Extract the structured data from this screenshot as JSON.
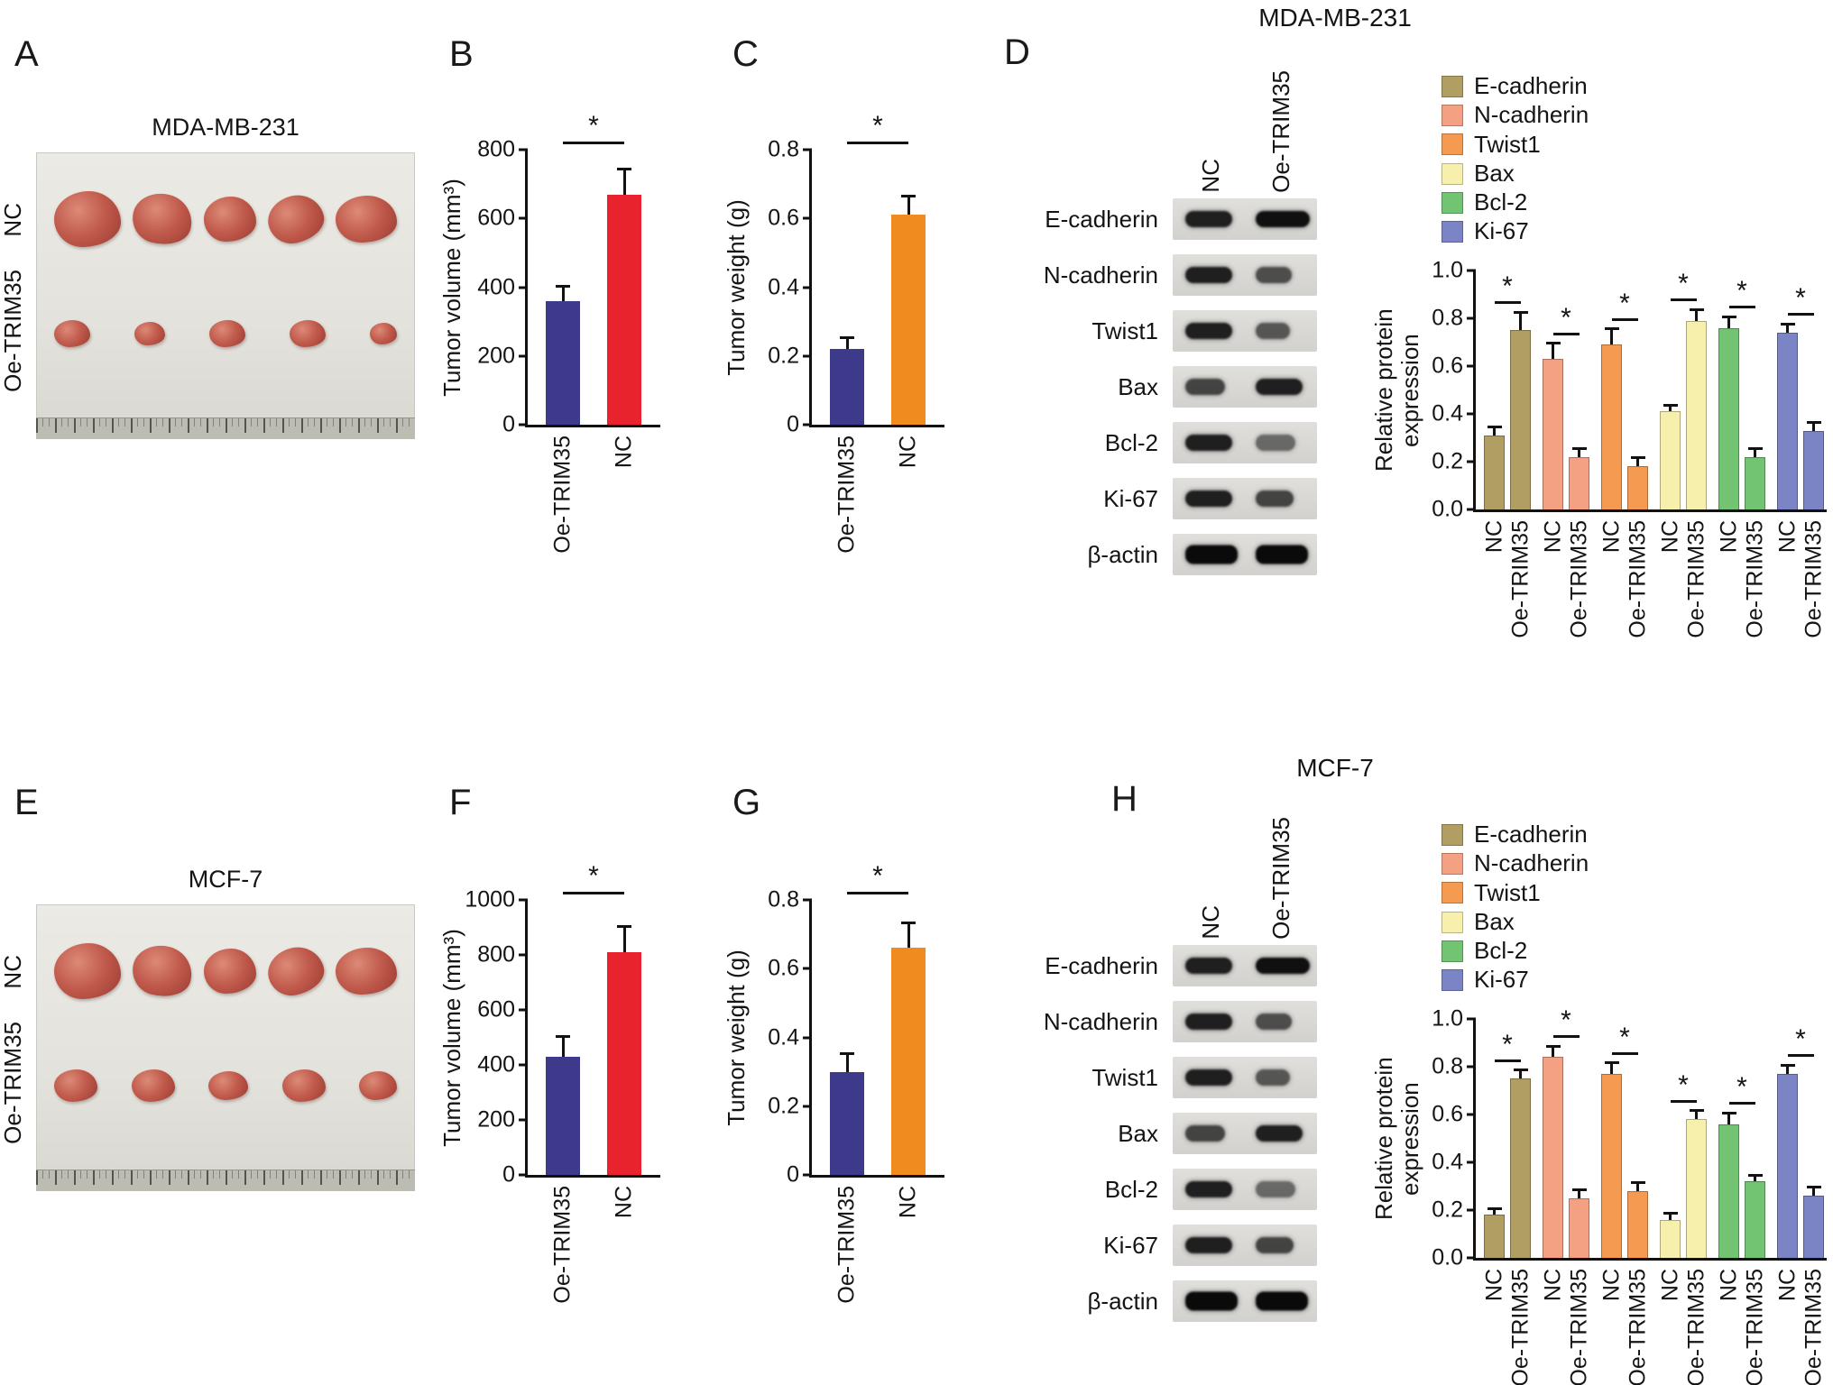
{
  "figure": {
    "panels": {
      "A": {
        "letter": "A",
        "photo_title": "MDA-MB-231",
        "row_labels": [
          "NC",
          "Oe-TRIM35"
        ]
      },
      "B": {
        "letter": "B"
      },
      "C": {
        "letter": "C"
      },
      "D": {
        "letter": "D",
        "title": "MDA-MB-231"
      },
      "E": {
        "letter": "E",
        "photo_title": "MCF-7",
        "row_labels": [
          "NC",
          "Oe-TRIM35"
        ]
      },
      "F": {
        "letter": "F"
      },
      "G": {
        "letter": "G"
      },
      "H": {
        "letter": "H",
        "title": "MCF-7"
      }
    },
    "western_blot": {
      "lanes": [
        "NC",
        "Oe-TRIM35"
      ],
      "rows": [
        "E-cadherin",
        "N-cadherin",
        "Twist1",
        "Bax",
        "Bcl-2",
        "Ki-67",
        "β-actin"
      ]
    },
    "legend": [
      {
        "label": "E-cadherin",
        "color": "#b19e63"
      },
      {
        "label": "N-cadherin",
        "color": "#f4a183"
      },
      {
        "label": "Twist1",
        "color": "#f59b51"
      },
      {
        "label": "Bax",
        "color": "#f7f0ad"
      },
      {
        "label": "Bcl-2",
        "color": "#72c472"
      },
      {
        "label": "Ki-67",
        "color": "#7b85c6"
      }
    ]
  },
  "chart_data": [
    {
      "panel": "B",
      "type": "bar",
      "cell_line": "MDA-MB-231",
      "categories": [
        "Oe-TRIM35",
        "NC"
      ],
      "values": [
        360,
        670
      ],
      "errors": [
        40,
        70
      ],
      "bar_colors": [
        "#3d3a8c",
        "#e8232d"
      ],
      "ylabel": "Tumor volume (mm³)",
      "ylim": [
        0,
        800
      ],
      "yticks": [
        0,
        200,
        400,
        600,
        800
      ],
      "ytick_labels": [
        "0",
        "200",
        "400",
        "600",
        "800"
      ],
      "significance": "*"
    },
    {
      "panel": "C",
      "type": "bar",
      "cell_line": "MDA-MB-231",
      "categories": [
        "Oe-TRIM35",
        "NC"
      ],
      "values": [
        0.22,
        0.61
      ],
      "errors": [
        0.03,
        0.05
      ],
      "bar_colors": [
        "#3d3a8c",
        "#f08b1f"
      ],
      "ylabel": "Tumor weight (g)",
      "ylim": [
        0,
        0.8
      ],
      "yticks": [
        0,
        0.2,
        0.4,
        0.6,
        0.8
      ],
      "ytick_labels": [
        "0",
        "0.2",
        "0.4",
        "0.6",
        "0.8"
      ],
      "significance": "*"
    },
    {
      "panel": "D",
      "type": "grouped_bar",
      "cell_line": "MDA-MB-231",
      "groups": [
        "E-cadherin",
        "N-cadherin",
        "Twist1",
        "Bax",
        "Bcl-2",
        "Ki-67"
      ],
      "group_colors": [
        "#b19e63",
        "#f4a183",
        "#f59b51",
        "#f7f0ad",
        "#72c472",
        "#7b85c6"
      ],
      "categories": [
        "NC",
        "Oe-TRIM35"
      ],
      "series": [
        {
          "name": "NC",
          "values": [
            0.31,
            0.63,
            0.69,
            0.41,
            0.76,
            0.74
          ],
          "errors": [
            0.03,
            0.06,
            0.06,
            0.02,
            0.04,
            0.03
          ]
        },
        {
          "name": "Oe-TRIM35",
          "values": [
            0.75,
            0.22,
            0.18,
            0.79,
            0.22,
            0.33
          ],
          "errors": [
            0.07,
            0.03,
            0.03,
            0.04,
            0.03,
            0.03
          ]
        }
      ],
      "ylabel": "Relative protein expression",
      "ylim": [
        0,
        1.0
      ],
      "yticks": [
        0,
        0.2,
        0.4,
        0.6,
        0.8,
        1.0
      ],
      "ytick_labels": [
        "0.0",
        "0.2",
        "0.4",
        "0.6",
        "0.8",
        "1.0"
      ],
      "significance": "*"
    },
    {
      "panel": "F",
      "type": "bar",
      "cell_line": "MCF-7",
      "categories": [
        "Oe-TRIM35",
        "NC"
      ],
      "values": [
        430,
        810
      ],
      "errors": [
        70,
        90
      ],
      "bar_colors": [
        "#3d3a8c",
        "#e8232d"
      ],
      "ylabel": "Tumor volume (mm³)",
      "ylim": [
        0,
        1000
      ],
      "yticks": [
        0,
        200,
        400,
        600,
        800,
        1000
      ],
      "ytick_labels": [
        "0",
        "200",
        "400",
        "600",
        "800",
        "1000"
      ],
      "significance": "*"
    },
    {
      "panel": "G",
      "type": "bar",
      "cell_line": "MCF-7",
      "categories": [
        "Oe-TRIM35",
        "NC"
      ],
      "values": [
        0.3,
        0.66
      ],
      "errors": [
        0.05,
        0.07
      ],
      "bar_colors": [
        "#3d3a8c",
        "#f08b1f"
      ],
      "ylabel": "Tumor weight (g)",
      "ylim": [
        0,
        0.8
      ],
      "yticks": [
        0,
        0.2,
        0.4,
        0.6,
        0.8
      ],
      "ytick_labels": [
        "0",
        "0.2",
        "0.4",
        "0.6",
        "0.8"
      ],
      "significance": "*"
    },
    {
      "panel": "H",
      "type": "grouped_bar",
      "cell_line": "MCF-7",
      "groups": [
        "E-cadherin",
        "N-cadherin",
        "Twist1",
        "Bax",
        "Bcl-2",
        "Ki-67"
      ],
      "group_colors": [
        "#b19e63",
        "#f4a183",
        "#f59b51",
        "#f7f0ad",
        "#72c472",
        "#7b85c6"
      ],
      "categories": [
        "NC",
        "Oe-TRIM35"
      ],
      "series": [
        {
          "name": "NC",
          "values": [
            0.18,
            0.84,
            0.77,
            0.16,
            0.56,
            0.77
          ],
          "errors": [
            0.02,
            0.04,
            0.04,
            0.02,
            0.04,
            0.03
          ]
        },
        {
          "name": "Oe-TRIM35",
          "values": [
            0.75,
            0.25,
            0.28,
            0.58,
            0.32,
            0.26
          ],
          "errors": [
            0.03,
            0.03,
            0.03,
            0.03,
            0.02,
            0.03
          ]
        }
      ],
      "ylabel": "Relative protein expression",
      "ylim": [
        0,
        1.0
      ],
      "yticks": [
        0,
        0.2,
        0.4,
        0.6,
        0.8,
        1.0
      ],
      "ytick_labels": [
        "0.0",
        "0.2",
        "0.4",
        "0.6",
        "0.8",
        "1.0"
      ],
      "significance": "*"
    }
  ]
}
